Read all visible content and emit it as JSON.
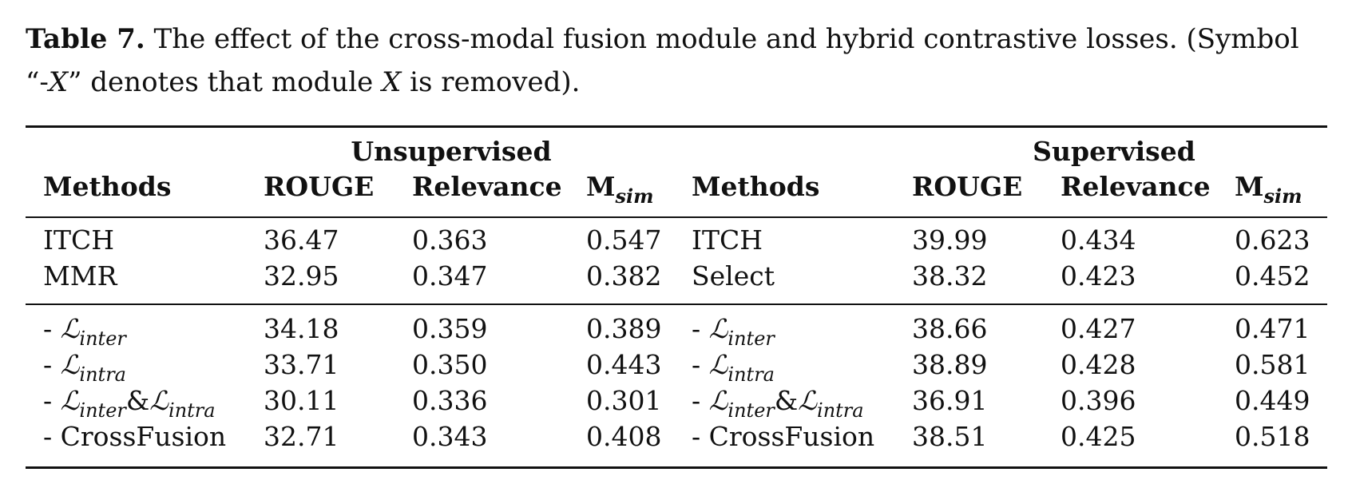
{
  "caption": {
    "label": "Table 7.",
    "text1": " The effect of the cross-modal fusion module and hybrid contrastive losses. (Symbol “-",
    "symbol": "X",
    "text2": "” denotes that module ",
    "module": "X",
    "text3": " is removed)."
  },
  "table": {
    "groups": [
      "Unsupervised",
      "Supervised"
    ],
    "headers": {
      "methods": "Methods",
      "rouge": "ROUGE",
      "relevance": "Relevance",
      "msim_main": "M",
      "msim_sub": "sim"
    },
    "symbols": {
      "prefix": "- ",
      "L": "ℒ",
      "amp": "&",
      "inter": "inter",
      "intra": "intra"
    },
    "baseline_rows": [
      {
        "u_method": "ITCH",
        "u_rouge": "36.47",
        "u_rel": "0.363",
        "u_msim": "0.547",
        "s_method": "ITCH",
        "s_rouge": "39.99",
        "s_rel": "0.434",
        "s_msim": "0.623"
      },
      {
        "u_method": "MMR",
        "u_rouge": "32.95",
        "u_rel": "0.347",
        "u_msim": "0.382",
        "s_method": "Select",
        "s_rouge": "38.32",
        "s_rel": "0.423",
        "s_msim": "0.452"
      }
    ],
    "ablation_rows": [
      {
        "method": "- Linter",
        "u_rouge": "34.18",
        "u_rel": "0.359",
        "u_msim": "0.389",
        "s_rouge": "38.66",
        "s_rel": "0.427",
        "s_msim": "0.471"
      },
      {
        "method": "- Lintra",
        "u_rouge": "33.71",
        "u_rel": "0.350",
        "u_msim": "0.443",
        "s_rouge": "38.89",
        "s_rel": "0.428",
        "s_msim": "0.581"
      },
      {
        "method": "- Linter&Lintra",
        "u_rouge": "30.11",
        "u_rel": "0.336",
        "u_msim": "0.301",
        "s_rouge": "36.91",
        "s_rel": "0.396",
        "s_msim": "0.449"
      },
      {
        "method": "- CrossFusion",
        "u_rouge": "32.71",
        "u_rel": "0.343",
        "u_msim": "0.408",
        "s_rouge": "38.51",
        "s_rel": "0.425",
        "s_msim": "0.518"
      }
    ]
  }
}
